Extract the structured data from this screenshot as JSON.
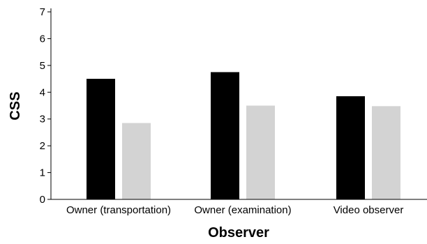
{
  "chart_data": {
    "type": "bar",
    "xlabel": "Observer",
    "ylabel": "CSS",
    "ylim": [
      0,
      7
    ],
    "yticks": [
      0,
      1,
      2,
      3,
      4,
      5,
      6,
      7
    ],
    "grid": false,
    "legend": "none",
    "categories": [
      "Owner (transportation)",
      "Owner (examination)",
      "Video observer"
    ],
    "series": [
      {
        "values": [
          4.5,
          4.75,
          3.85
        ],
        "color": "#000000"
      },
      {
        "values": [
          2.85,
          3.5,
          3.48
        ],
        "color": "#d3d3d3"
      }
    ]
  }
}
